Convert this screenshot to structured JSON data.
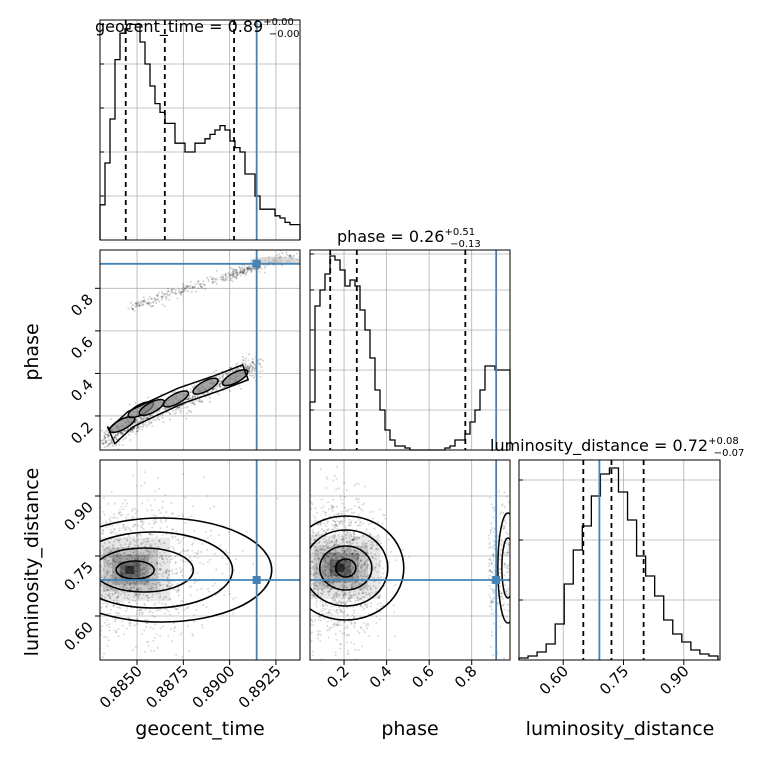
{
  "chart_data": {
    "type": "corner",
    "parameters": [
      "geocent_time",
      "phase",
      "luminosity_distance"
    ],
    "titles": {
      "geocent_time": {
        "name": "geocent_time",
        "median": "0.89",
        "plus": "+0.00",
        "minus": "−0.00"
      },
      "phase": {
        "name": "phase",
        "median": "0.26",
        "plus": "+0.51",
        "minus": "−0.13"
      },
      "luminosity_distance": {
        "name": "luminosity_distance",
        "median": "0.72",
        "plus": "+0.08",
        "minus": "−0.07"
      }
    },
    "axis_labels": {
      "geocent_time": "geocent_time",
      "phase": "phase",
      "luminosity_distance": "luminosity_distance"
    },
    "ranges": {
      "geocent_time": [
        0.883,
        0.8938
      ],
      "phase": [
        0.04,
        0.98
      ],
      "luminosity_distance": [
        0.49,
        0.99
      ]
    },
    "ticks": {
      "geocent_time": {
        "values": [
          0.885,
          0.8875,
          0.89,
          0.8925
        ],
        "labels": [
          "0.8850",
          "0.8875",
          "0.8900",
          "0.8925"
        ]
      },
      "phase_x": {
        "values": [
          0.2,
          0.4,
          0.6,
          0.8
        ],
        "labels": [
          "0.2",
          "0.4",
          "0.6",
          "0.8"
        ]
      },
      "phase_y": {
        "values": [
          0.2,
          0.4,
          0.6,
          0.8
        ],
        "labels": [
          "0.2",
          "0.4",
          "0.6",
          "0.8"
        ]
      },
      "luminosity_distance": {
        "values": [
          0.6,
          0.75,
          0.9
        ],
        "labels": [
          "0.60",
          "0.75",
          "0.90"
        ]
      }
    },
    "truths": {
      "geocent_time": 0.89146,
      "phase": 0.915,
      "luminosity_distance": 0.69
    },
    "quantiles": {
      "geocent_time": [
        0.88439,
        0.8865,
        0.89024
      ],
      "phase": [
        0.135,
        0.26,
        0.77
      ],
      "luminosity_distance": [
        0.65,
        0.72,
        0.8
      ]
    },
    "histograms": {
      "geocent_time": {
        "edges": [
          0.883,
          0.88327,
          0.88354,
          0.88381,
          0.88408,
          0.88435,
          0.88462,
          0.88489,
          0.88516,
          0.88543,
          0.8857,
          0.88597,
          0.88624,
          0.88651,
          0.88678,
          0.88705,
          0.88732,
          0.88759,
          0.88786,
          0.88813,
          0.8884,
          0.88867,
          0.88894,
          0.88921,
          0.88948,
          0.88975,
          0.89002,
          0.89029,
          0.89056,
          0.89083,
          0.8911,
          0.89137,
          0.89164,
          0.89191,
          0.89218,
          0.89245,
          0.89272,
          0.89299,
          0.89326,
          0.89353,
          0.8938
        ],
        "counts": [
          0.16,
          0.35,
          0.55,
          0.82,
          0.94,
          0.96,
          0.98,
          0.98,
          0.9,
          0.8,
          0.7,
          0.62,
          0.58,
          0.53,
          0.53,
          0.44,
          0.44,
          0.4,
          0.4,
          0.44,
          0.44,
          0.46,
          0.48,
          0.5,
          0.52,
          0.5,
          0.45,
          0.42,
          0.4,
          0.3,
          0.3,
          0.2,
          0.14,
          0.14,
          0.14,
          0.11,
          0.1,
          0.08,
          0.07,
          0.07
        ],
        "yticks": [
          0.2,
          0.4,
          0.6,
          0.8,
          0.98
        ]
      },
      "phase": {
        "edges": [
          0.04,
          0.0635,
          0.087,
          0.1105,
          0.134,
          0.1575,
          0.181,
          0.2045,
          0.228,
          0.2515,
          0.275,
          0.2985,
          0.322,
          0.3455,
          0.369,
          0.3925,
          0.416,
          0.4395,
          0.463,
          0.4865,
          0.51,
          0.5335,
          0.557,
          0.5805,
          0.604,
          0.6275,
          0.651,
          0.6745,
          0.698,
          0.7215,
          0.745,
          0.7685,
          0.792,
          0.8155,
          0.839,
          0.8625,
          0.886,
          0.9095,
          0.933,
          0.9565,
          0.98
        ],
        "counts": [
          0.24,
          0.72,
          0.8,
          0.88,
          0.97,
          0.95,
          0.9,
          0.82,
          0.85,
          0.82,
          0.7,
          0.6,
          0.46,
          0.3,
          0.2,
          0.1,
          0.05,
          0.02,
          0.02,
          0.01,
          0.0,
          0.0,
          0.0,
          0.0,
          0.0,
          0.0,
          0.0,
          0.01,
          0.02,
          0.05,
          0.05,
          0.08,
          0.14,
          0.2,
          0.3,
          0.42,
          0.42,
          0.4,
          0.4,
          0.4
        ],
        "yticks": [
          0.2,
          0.4,
          0.6,
          0.8,
          0.98
        ]
      },
      "luminosity_distance": {
        "edges": [
          0.49,
          0.5125,
          0.535,
          0.5575,
          0.58,
          0.6025,
          0.625,
          0.6475,
          0.67,
          0.6925,
          0.715,
          0.7375,
          0.76,
          0.7825,
          0.805,
          0.8275,
          0.85,
          0.8725,
          0.895,
          0.9175,
          0.94,
          0.9625,
          0.985
        ],
        "counts": [
          0.01,
          0.02,
          0.04,
          0.08,
          0.18,
          0.38,
          0.55,
          0.67,
          0.82,
          0.93,
          0.96,
          0.84,
          0.7,
          0.52,
          0.42,
          0.32,
          0.2,
          0.13,
          0.09,
          0.05,
          0.03,
          0.02
        ],
        "yticks": [
          0.3,
          0.6,
          0.9
        ]
      }
    },
    "scatter_density": {
      "phase_vs_geocent_time": {
        "upper_band": {
          "x": [
            0.8845,
            0.887,
            0.89,
            0.8912,
            0.8935
          ],
          "y": [
            0.7,
            0.78,
            0.86,
            0.9,
            0.95
          ]
        },
        "lower_band": {
          "x": [
            0.8832,
            0.8845,
            0.886,
            0.888,
            0.89,
            0.8915
          ],
          "y": [
            0.08,
            0.15,
            0.22,
            0.29,
            0.38,
            0.44
          ]
        },
        "contour_centers": [
          [
            0.8842,
            0.16
          ],
          [
            0.8852,
            0.23
          ],
          [
            0.8858,
            0.24
          ],
          [
            0.8871,
            0.28
          ],
          [
            0.8887,
            0.34
          ],
          [
            0.8903,
            0.38
          ]
        ]
      },
      "luminosity_distance_vs_geocent_time": {
        "peak": [
          0.8846,
          0.715
        ],
        "spread_x": [
          0.8832,
          0.892
        ],
        "spread_y": [
          0.55,
          0.92
        ]
      },
      "luminosity_distance_vs_phase": {
        "peak": [
          0.18,
          0.72
        ],
        "spread_x": [
          0.05,
          0.45
        ],
        "secondary_x": [
          0.88,
          0.98
        ]
      }
    },
    "grid": true,
    "truth_color": "#4682b4"
  }
}
